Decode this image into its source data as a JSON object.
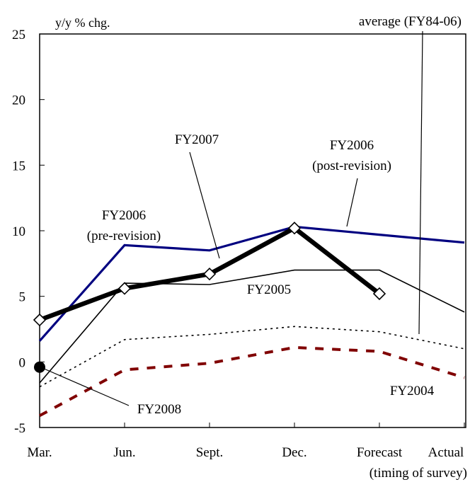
{
  "chart_data": {
    "type": "line",
    "ylabel": "y/y % chg.",
    "xlabel": "(timing of survey)",
    "categories": [
      "Mar.",
      "Jun.",
      "Sept.",
      "Dec.",
      "Forecast",
      "Actual"
    ],
    "yticks": [
      25,
      20,
      15,
      10,
      5,
      0,
      -5
    ],
    "ylim": [
      -5,
      25
    ],
    "grid": false,
    "series": [
      {
        "name": "FY2008",
        "values": [
          -0.4,
          null,
          null,
          null,
          null,
          null
        ],
        "color": "#000000",
        "style": "dot-marker"
      },
      {
        "name": "FY2007",
        "values": [
          3.2,
          5.6,
          6.7,
          10.2,
          5.2,
          null
        ],
        "color": "#000000",
        "style": "thick-diamond"
      },
      {
        "name": "FY2006 (post-revision)",
        "values": [
          1.6,
          8.9,
          8.5,
          10.3,
          9.7,
          9.1
        ],
        "color": "#000080",
        "style": "solid"
      },
      {
        "name": "FY2006 (pre-revision)",
        "values": [
          1.6,
          8.9,
          8.5,
          10.3,
          null,
          null
        ],
        "color": "#000080",
        "style": "solid-hidden"
      },
      {
        "name": "FY2005",
        "values": [
          -1.6,
          6.0,
          5.9,
          7.0,
          7.0,
          3.8
        ],
        "color": "#000000",
        "style": "thin"
      },
      {
        "name": "average (FY84-06)",
        "values": [
          -1.9,
          1.7,
          2.1,
          2.7,
          2.3,
          1.0
        ],
        "color": "#000000",
        "style": "dotted"
      },
      {
        "name": "FY2004",
        "values": [
          -4.1,
          -0.6,
          -0.1,
          1.1,
          0.8,
          -1.2
        ],
        "color": "#800000",
        "style": "dashed"
      }
    ],
    "annotations": {
      "fy2007": "FY2007",
      "fy2006_post_line1": "FY2006",
      "fy2006_post_line2": "(post-revision)",
      "fy2006_pre_line1": "FY2006",
      "fy2006_pre_line2": "(pre-revision)",
      "fy2005": "FY2005",
      "fy2004": "FY2004",
      "fy2008": "FY2008",
      "average": "average (FY84-06)"
    }
  }
}
